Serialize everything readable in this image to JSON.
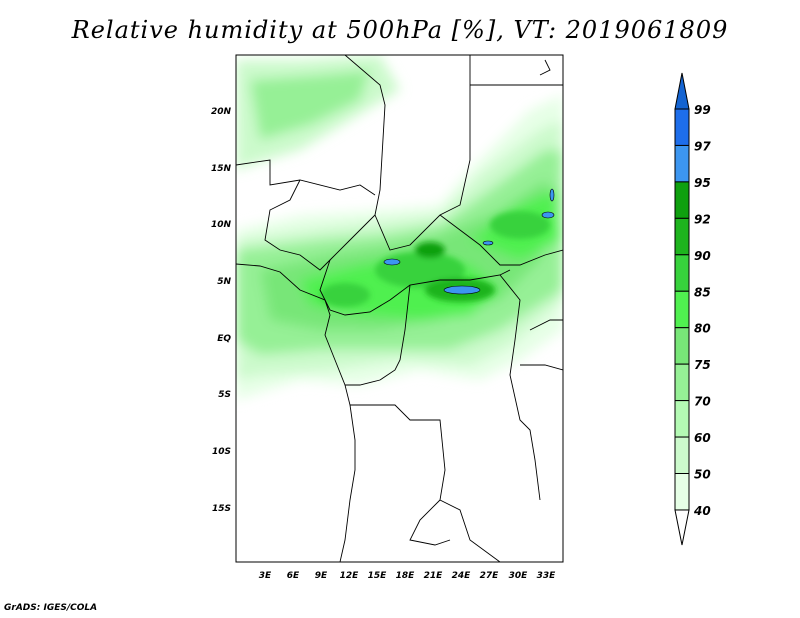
{
  "title": "Relative humidity at 500hPa [%], VT: 2019061809",
  "credit": "GrADS: IGES/COLA",
  "map": {
    "lon_range": [
      0,
      35
    ],
    "lat_range": [
      -20,
      25
    ],
    "lon_ticks": [
      "3E",
      "6E",
      "9E",
      "12E",
      "15E",
      "18E",
      "21E",
      "24E",
      "27E",
      "30E",
      "33E"
    ],
    "lat_ticks": [
      "20N",
      "15N",
      "10N",
      "5N",
      "EQ",
      "5S",
      "10S",
      "15S"
    ]
  },
  "colorbar": {
    "labels": [
      "99",
      "97",
      "95",
      "92",
      "90",
      "85",
      "80",
      "75",
      "70",
      "60",
      "50",
      "40"
    ],
    "colors": [
      "#1464d2",
      "#1e6eeb",
      "#3c96f0",
      "#0fa00f",
      "#1eb41e",
      "#37d23c",
      "#50f050",
      "#78e678",
      "#96f096",
      "#b4fab4",
      "#ccfacc",
      "#e6ffe6",
      "#ffffff"
    ]
  }
}
